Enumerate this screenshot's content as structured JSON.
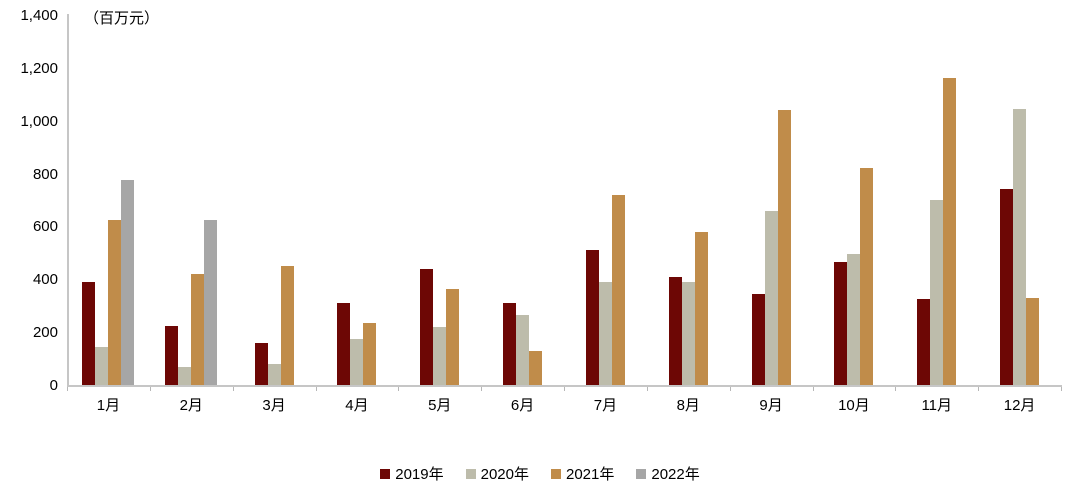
{
  "chart_data": {
    "type": "bar",
    "title": "",
    "unit_label": "（百万元）",
    "xlabel": "",
    "ylabel": "百万元",
    "categories": [
      "1月",
      "2月",
      "3月",
      "4月",
      "5月",
      "6月",
      "7月",
      "8月",
      "9月",
      "10月",
      "11月",
      "12月"
    ],
    "series": [
      {
        "name": "2019年",
        "color": "#6d0705",
        "values": [
          390,
          225,
          160,
          310,
          440,
          310,
          510,
          410,
          345,
          465,
          325,
          740
        ]
      },
      {
        "name": "2020年",
        "color": "#bdbcab",
        "values": [
          145,
          70,
          80,
          175,
          220,
          265,
          390,
          390,
          660,
          495,
          700,
          1045
        ]
      },
      {
        "name": "2021年",
        "color": "#c08c4a",
        "values": [
          625,
          420,
          450,
          235,
          365,
          130,
          720,
          580,
          1040,
          820,
          1160,
          330
        ]
      },
      {
        "name": "2022年",
        "color": "#a6a6a6",
        "values": [
          775,
          625,
          null,
          null,
          null,
          null,
          null,
          null,
          null,
          null,
          null,
          null
        ]
      }
    ],
    "ylim": [
      0,
      1400
    ],
    "ytick_step": 200,
    "ytick_labels": [
      "0",
      "200",
      "400",
      "600",
      "800",
      "1,000",
      "1,200",
      "1,400"
    ],
    "legend_position": "bottom",
    "grid": false,
    "axis_color": "#c6c6c6",
    "text_color": "#000000"
  }
}
